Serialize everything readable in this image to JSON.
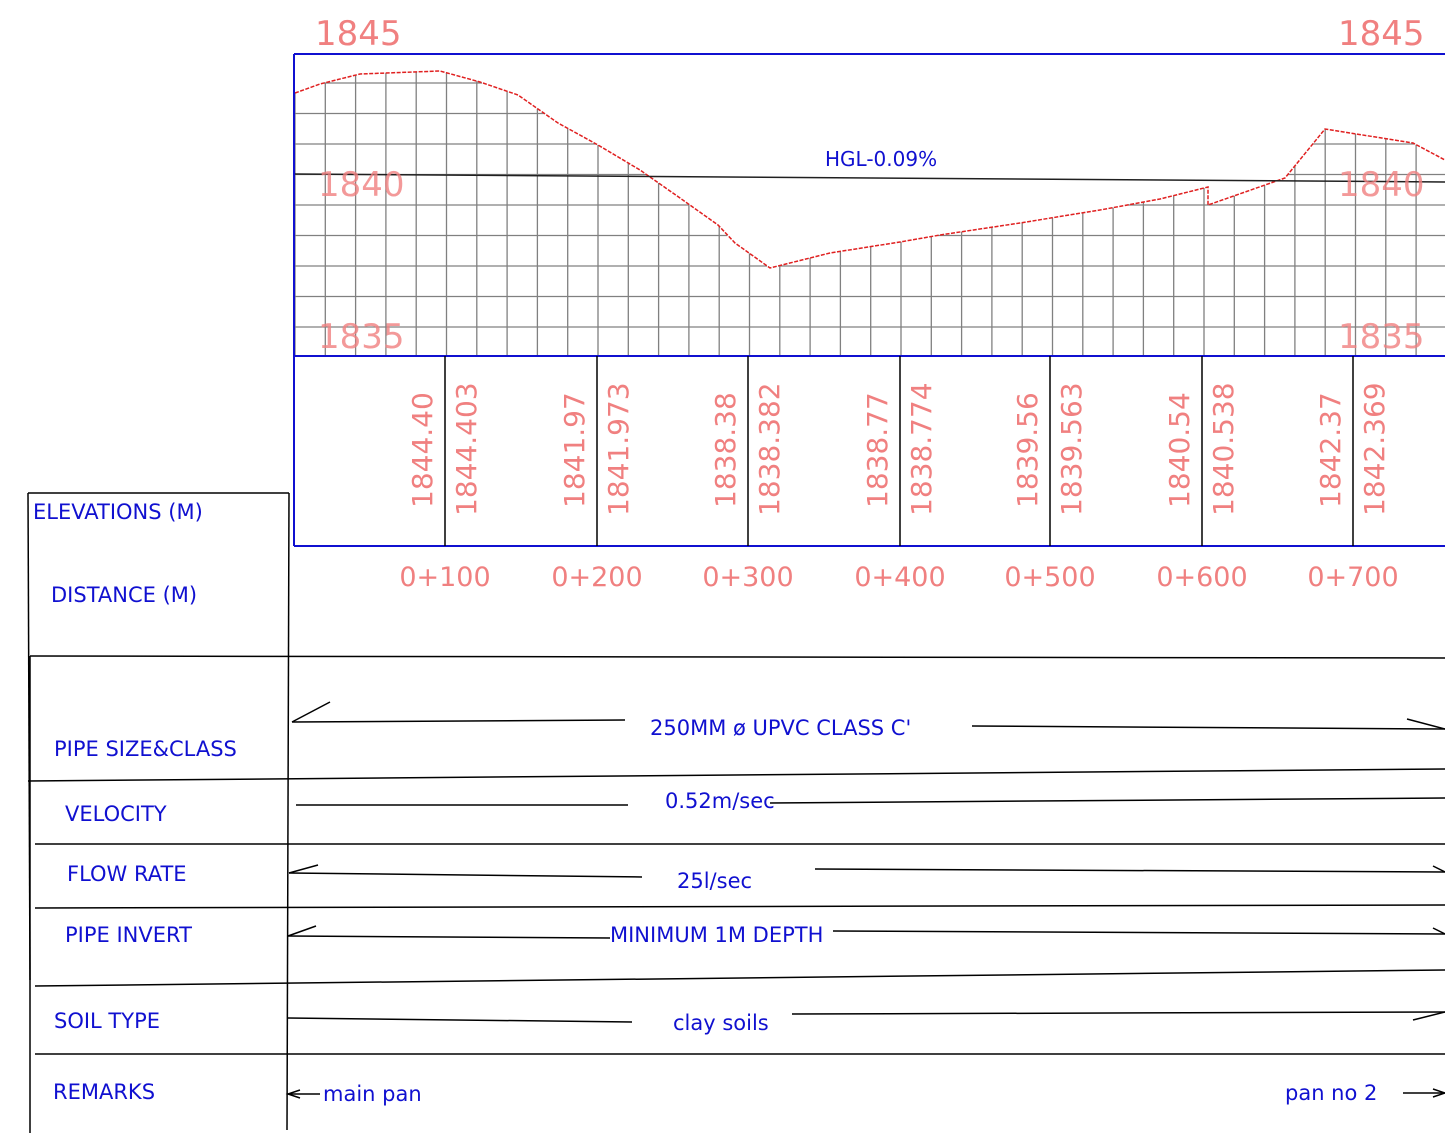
{
  "profile": {
    "elev_top_left": "1845",
    "elev_top_right": "1845",
    "elev_mid_left": "1840",
    "elev_mid_right": "1840",
    "elev_bot_left": "1835",
    "elev_bot_right": "1835",
    "hgl_label": "HGL-0.09%"
  },
  "elevations": [
    {
      "ground": "1844.40",
      "invert": "1844.403"
    },
    {
      "ground": "1841.97",
      "invert": "1841.973"
    },
    {
      "ground": "1838.38",
      "invert": "1838.382"
    },
    {
      "ground": "1838.77",
      "invert": "1838.774"
    },
    {
      "ground": "1839.56",
      "invert": "1839.563"
    },
    {
      "ground": "1840.54",
      "invert": "1840.538"
    },
    {
      "ground": "1842.37",
      "invert": "1842.369"
    }
  ],
  "chainages": [
    "0+100",
    "0+200",
    "0+300",
    "0+400",
    "0+500",
    "0+600",
    "0+700"
  ],
  "table": {
    "elevations_label": "ELEVATIONS (M)",
    "distance_label": "DISTANCE (M)",
    "pipe_label": "PIPE SIZE&CLASS",
    "pipe_value": "250MM ø UPVC CLASS C'",
    "velocity_label": "VELOCITY",
    "velocity_value": "0.52m/sec",
    "flow_label": "FLOW RATE",
    "flow_value": "25l/sec",
    "invert_label": "PIPE INVERT",
    "invert_value": "MINIMUM 1M DEPTH",
    "soil_label": "SOIL TYPE",
    "soil_value": "clay soils",
    "remarks_label": "REMARKS",
    "remarks_left": "main pan",
    "remarks_right": "pan no 2"
  },
  "colors": {
    "frame": "#1010d0",
    "ground": "#e02020",
    "grid": "#808080",
    "labels": "#f08080",
    "table_text": "#1010d0"
  }
}
